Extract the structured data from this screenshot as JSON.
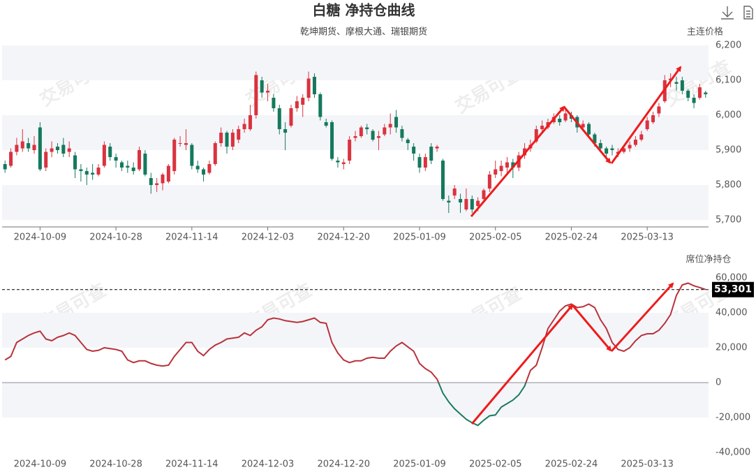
{
  "title": "白糖 净持仓曲线",
  "subtitle": "乾坤期货、摩根大通、瑞银期货",
  "watermark": "交易可查",
  "chart_data": [
    {
      "type": "candlestick",
      "axis_title": "主连价格",
      "up_color": "#d9333f",
      "down_color": "#14795d",
      "categories": [
        null,
        null,
        null,
        null,
        null,
        null,
        "2024-10-09",
        null,
        null,
        null,
        null,
        null,
        null,
        null,
        null,
        null,
        null,
        null,
        null,
        "2024-10-28",
        null,
        null,
        null,
        null,
        null,
        null,
        null,
        null,
        null,
        null,
        null,
        null,
        "2024-11-14",
        null,
        null,
        null,
        null,
        null,
        null,
        null,
        null,
        null,
        null,
        null,
        null,
        "2024-12-03",
        null,
        null,
        null,
        null,
        null,
        null,
        null,
        null,
        null,
        null,
        null,
        null,
        "2024-12-20",
        null,
        null,
        null,
        null,
        null,
        null,
        null,
        null,
        null,
        null,
        null,
        null,
        "2025-01-09",
        null,
        null,
        null,
        null,
        null,
        null,
        null,
        null,
        null,
        null,
        null,
        null,
        "2025-02-05",
        null,
        null,
        null,
        null,
        null,
        null,
        null,
        null,
        null,
        null,
        null,
        null,
        "2025-02-24",
        null,
        null,
        null,
        null,
        null,
        null,
        null,
        null,
        null,
        null,
        null,
        null,
        "2025-03-13",
        null,
        null,
        null,
        null,
        null,
        null,
        null,
        null,
        null,
        null
      ],
      "open": [
        5860,
        5855,
        5895,
        5905,
        5920,
        5900,
        5965,
        5850,
        5895,
        5910,
        5915,
        5895,
        5885,
        5845,
        5840,
        5835,
        5830,
        5855,
        5910,
        5880,
        5865,
        5855,
        5850,
        5845,
        5890,
        5820,
        5800,
        5805,
        5810,
        5840,
        5920,
        5915,
        5915,
        5855,
        5845,
        5835,
        5860,
        5920,
        5950,
        5910,
        5930,
        5960,
        5960,
        6000,
        6100,
        6065,
        6050,
        6020,
        5960,
        5970,
        6020,
        6030,
        6050,
        6110,
        6060,
        5980,
        5980,
        5870,
        5860,
        5870,
        5935,
        5940,
        5965,
        5955,
        5935,
        5945,
        5965,
        5995,
        5960,
        5930,
        5910,
        5880,
        5850,
        5910,
        5905,
        5870,
        5755,
        5770,
        5760,
        5730,
        5760,
        5740,
        5760,
        5790,
        5830,
        5840,
        5850,
        5865,
        5850,
        5885,
        5905,
        5925,
        5960,
        5965,
        5980,
        5990,
        5985,
        6000,
        5995,
        5965,
        5975,
        5945,
        5920,
        5905,
        5905,
        5890,
        5895,
        5905,
        5915,
        5930,
        5960,
        5980,
        6005,
        6040,
        6100,
        6095,
        6100,
        6070,
        6050,
        6050,
        6065
      ],
      "close": [
        5845,
        5895,
        5915,
        5925,
        5905,
        5915,
        5845,
        5895,
        5905,
        5900,
        5890,
        5905,
        5845,
        5840,
        5830,
        5830,
        5850,
        5915,
        5880,
        5870,
        5850,
        5850,
        5840,
        5900,
        5830,
        5800,
        5805,
        5830,
        5855,
        5930,
        5920,
        5920,
        5855,
        5845,
        5830,
        5860,
        5920,
        5950,
        5910,
        5950,
        5960,
        5975,
        6000,
        6115,
        6065,
        6070,
        6020,
        5960,
        5950,
        6020,
        6040,
        6050,
        6105,
        6060,
        5995,
        5970,
        5875,
        5865,
        5865,
        5930,
        5940,
        5965,
        5960,
        5930,
        5940,
        5965,
        5975,
        5965,
        5935,
        5920,
        5890,
        5850,
        5880,
        5870,
        5910,
        5760,
        5750,
        5790,
        5750,
        5760,
        5730,
        5755,
        5785,
        5830,
        5845,
        5855,
        5865,
        5850,
        5885,
        5905,
        5915,
        5960,
        5970,
        5980,
        5995,
        5980,
        6005,
        5990,
        5965,
        5975,
        5945,
        5920,
        5905,
        5890,
        5900,
        5895,
        5905,
        5915,
        5930,
        5945,
        5985,
        6000,
        6025,
        6100,
        6105,
        6090,
        6070,
        6050,
        6035,
        6080,
        6060
      ],
      "low": [
        5835,
        5850,
        5885,
        5895,
        5895,
        5890,
        5840,
        5840,
        5880,
        5890,
        5880,
        5880,
        5820,
        5810,
        5800,
        5815,
        5825,
        5850,
        5870,
        5850,
        5840,
        5835,
        5830,
        5840,
        5825,
        5775,
        5780,
        5785,
        5805,
        5830,
        5910,
        5900,
        5845,
        5835,
        5810,
        5830,
        5855,
        5910,
        5890,
        5900,
        5920,
        5950,
        5955,
        5990,
        6050,
        6040,
        6010,
        5945,
        5900,
        5965,
        6010,
        5995,
        6040,
        6050,
        5985,
        5965,
        5870,
        5850,
        5845,
        5860,
        5925,
        5935,
        5945,
        5925,
        5900,
        5940,
        5945,
        5950,
        5925,
        5900,
        5870,
        5835,
        5840,
        5860,
        5895,
        5755,
        5720,
        5760,
        5720,
        5725,
        5720,
        5725,
        5750,
        5780,
        5820,
        5825,
        5835,
        5820,
        5840,
        5875,
        5895,
        5920,
        5950,
        5960,
        5975,
        5970,
        5980,
        5980,
        5950,
        5955,
        5935,
        5910,
        5895,
        5875,
        5885,
        5880,
        5890,
        5895,
        5910,
        5925,
        5955,
        5975,
        5995,
        6035,
        6080,
        6070,
        6060,
        6040,
        6020,
        6045,
        6050
      ],
      "high": [
        5870,
        5905,
        5935,
        5960,
        5935,
        5940,
        5980,
        5905,
        5925,
        5920,
        5935,
        5925,
        5895,
        5860,
        5850,
        5860,
        5860,
        5925,
        5920,
        5890,
        5870,
        5870,
        5865,
        5910,
        5900,
        5835,
        5820,
        5835,
        5860,
        5935,
        5940,
        5960,
        5920,
        5870,
        5850,
        5870,
        5925,
        5965,
        5955,
        5960,
        5970,
        5990,
        6030,
        6125,
        6110,
        6090,
        6060,
        6030,
        5980,
        6030,
        6055,
        6060,
        6125,
        6120,
        6065,
        5990,
        5985,
        5880,
        5875,
        5940,
        5955,
        5970,
        5975,
        5960,
        5955,
        5975,
        6005,
        6015,
        5970,
        5935,
        5920,
        5890,
        5890,
        5920,
        5915,
        5875,
        5770,
        5800,
        5775,
        5790,
        5770,
        5765,
        5790,
        5840,
        5870,
        5870,
        5880,
        5875,
        5895,
        5920,
        5930,
        5970,
        5985,
        5990,
        6005,
        6000,
        6015,
        6010,
        6000,
        5985,
        5980,
        5950,
        5930,
        5910,
        5915,
        5905,
        5915,
        5925,
        5940,
        5955,
        5995,
        6010,
        6035,
        6115,
        6120,
        6110,
        6110,
        6075,
        6060,
        6090,
        6070
      ],
      "ylim": [
        5700,
        6200
      ],
      "yticks": [
        {
          "value": 5700,
          "label": "5,700"
        },
        {
          "value": 5800,
          "label": "5,800"
        },
        {
          "value": 5900,
          "label": "5,900"
        },
        {
          "value": 6000,
          "label": "6,000"
        },
        {
          "value": 6100,
          "label": "6,100"
        },
        {
          "value": 6200,
          "label": "6,200"
        }
      ]
    },
    {
      "type": "line",
      "axis_title": "席位净持仓",
      "color": "#b8323a",
      "negative_color": "#1a7a5e",
      "categories": [
        null,
        null,
        null,
        null,
        null,
        null,
        "2024-10-09",
        null,
        null,
        null,
        null,
        null,
        null,
        null,
        null,
        null,
        null,
        null,
        null,
        "2024-10-28",
        null,
        null,
        null,
        null,
        null,
        null,
        null,
        null,
        null,
        null,
        null,
        null,
        "2024-11-14",
        null,
        null,
        null,
        null,
        null,
        null,
        null,
        null,
        null,
        null,
        null,
        null,
        "2024-12-03",
        null,
        null,
        null,
        null,
        null,
        null,
        null,
        null,
        null,
        null,
        null,
        null,
        "2024-12-20",
        null,
        null,
        null,
        null,
        null,
        null,
        null,
        null,
        null,
        null,
        null,
        null,
        "2025-01-09",
        null,
        null,
        null,
        null,
        null,
        null,
        null,
        null,
        null,
        null,
        null,
        null,
        "2025-02-05",
        null,
        null,
        null,
        null,
        null,
        null,
        null,
        null,
        null,
        null,
        null,
        null,
        "2025-02-24",
        null,
        null,
        null,
        null,
        null,
        null,
        null,
        null,
        null,
        null,
        null,
        null,
        "2025-03-13",
        null,
        null,
        null,
        null,
        null,
        null,
        null,
        null,
        null,
        null
      ],
      "values": [
        13000,
        15000,
        23000,
        25000,
        27000,
        28500,
        29500,
        25000,
        24000,
        26000,
        27000,
        28500,
        27000,
        23000,
        19000,
        18000,
        18500,
        20000,
        19500,
        19000,
        18000,
        13000,
        11500,
        12500,
        12500,
        11000,
        10000,
        9500,
        10000,
        15000,
        19000,
        23000,
        23000,
        18000,
        15500,
        19000,
        21500,
        23000,
        25000,
        25500,
        26000,
        28500,
        27000,
        30000,
        32000,
        36000,
        37000,
        36500,
        35500,
        35000,
        34500,
        35000,
        36000,
        37000,
        34500,
        34000,
        23000,
        17000,
        13000,
        11500,
        12500,
        12500,
        14000,
        14500,
        14000,
        14000,
        18000,
        21000,
        23000,
        20500,
        18000,
        11000,
        8000,
        6000,
        2000,
        -6000,
        -11000,
        -15000,
        -18000,
        -21000,
        -23000,
        -24500,
        -21500,
        -19000,
        -18500,
        -14000,
        -12000,
        -10000,
        -7000,
        -2000,
        7000,
        10000,
        20000,
        31000,
        36000,
        41000,
        44000,
        45000,
        43000,
        43500,
        45000,
        43000,
        36000,
        31000,
        23000,
        19000,
        18000,
        20000,
        24000,
        27000,
        28000,
        28000,
        30000,
        34000,
        39000,
        50000,
        56000,
        57000,
        55500,
        54500,
        53301
      ],
      "current": {
        "value": 53301,
        "label": "53,301"
      },
      "ylim": [
        -40000,
        60000
      ],
      "yticks": [
        {
          "value": -40000,
          "label": "-40,000"
        },
        {
          "value": -20000,
          "label": "-20,000"
        },
        0,
        {
          "value": 20000,
          "label": "20,000"
        },
        {
          "value": 40000,
          "label": "40,000"
        },
        {
          "value": 60000,
          "label": "60,000"
        }
      ]
    }
  ]
}
